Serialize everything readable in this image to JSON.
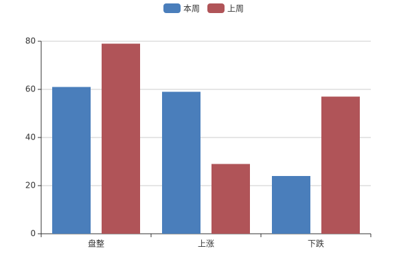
{
  "chart_data": {
    "type": "bar",
    "categories": [
      "盘整",
      "上涨",
      "下跌"
    ],
    "series": [
      {
        "name": "本周",
        "color": "#4a7ebb",
        "values": [
          61,
          59,
          24
        ]
      },
      {
        "name": "上周",
        "color": "#b05458",
        "values": [
          79,
          29,
          57
        ]
      }
    ],
    "ylim": [
      0,
      80
    ],
    "yticks": [
      0,
      20,
      40,
      60,
      80
    ],
    "grid": true,
    "legend": "top"
  }
}
